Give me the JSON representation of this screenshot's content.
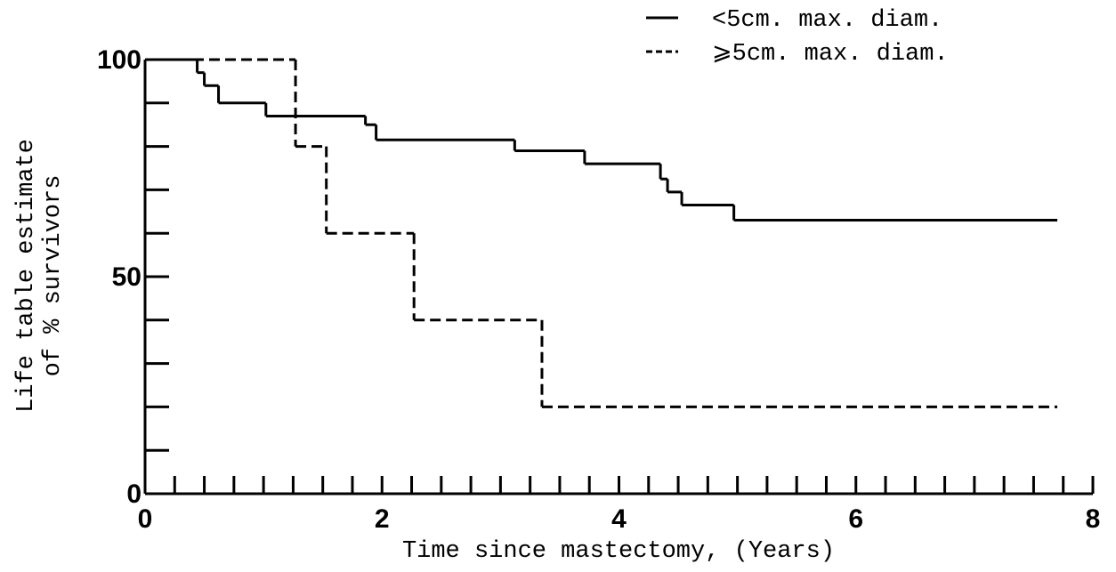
{
  "chart_data": {
    "type": "step",
    "xlabel": "Time since mastectomy, (Years)",
    "ylabel": [
      "Life table estimate",
      "of % survivors"
    ],
    "xlim": [
      0,
      8
    ],
    "xticks": [
      0,
      2,
      4,
      6,
      8
    ],
    "xminorticks": [
      0.25,
      0.5,
      0.75,
      1,
      1.25,
      1.5,
      1.75,
      2,
      2.25,
      2.5,
      2.75,
      3,
      3.25,
      3.5,
      3.75,
      4,
      4.25,
      4.5,
      4.75,
      5,
      5.25,
      5.5,
      5.75,
      6,
      6.25,
      6.5,
      6.75,
      7,
      7.25,
      7.5,
      7.75,
      8
    ],
    "ylim": [
      0,
      100
    ],
    "yticks": [
      0,
      50,
      100
    ],
    "yminorticks": [
      10,
      20,
      30,
      40,
      50,
      60,
      70,
      80,
      90
    ],
    "legend": "top-right",
    "series": [
      {
        "name": "<5cm. max. diam.",
        "color": "#000000",
        "dash": false,
        "x": [
          0,
          0.44,
          0.5,
          0.62,
          1.02,
          1.86,
          1.95,
          3.12,
          3.71,
          4.35,
          4.41,
          4.53,
          4.97,
          7.7
        ],
        "values": [
          100,
          97,
          94,
          90,
          87,
          85,
          81.5,
          79,
          76,
          72.5,
          69.5,
          66.5,
          63,
          63
        ]
      },
      {
        "name": "⩾5cm. max. diam.",
        "color": "#000000",
        "dash": true,
        "x": [
          0,
          1.27,
          1.53,
          2.27,
          3.35,
          7.7
        ],
        "values": [
          100,
          80,
          60,
          40,
          20,
          20
        ]
      }
    ]
  }
}
